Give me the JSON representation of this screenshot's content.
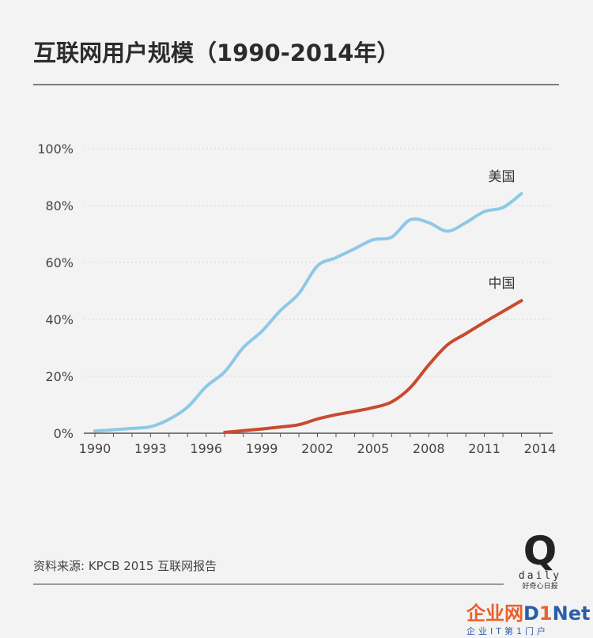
{
  "title": "互联网用户规模（1990-2014年）",
  "source": "资料来源: KPCB 2015 互联网报告",
  "logo": {
    "letter": "Q",
    "word": "daily",
    "tagline": "好奇心日报"
  },
  "watermark": {
    "cn": "企业网",
    "d": "D",
    "i": "1",
    "net": "Net",
    "sub": "企业IT第1门户"
  },
  "colors": {
    "us": "#8ec8e8",
    "china": "#c94a2e",
    "axis": "#555555",
    "grid": "#d5d5d5"
  },
  "chart_data": {
    "type": "line",
    "title": "互联网用户规模（1990-2014年）",
    "xlabel": "",
    "ylabel": "",
    "xlim": [
      1990,
      2014
    ],
    "ylim": [
      0,
      100
    ],
    "x_ticks": [
      "1990",
      "1993",
      "1996",
      "1999",
      "2002",
      "2005",
      "2008",
      "2011",
      "2014"
    ],
    "y_ticks": [
      "0%",
      "20%",
      "40%",
      "60%",
      "80%",
      "100%"
    ],
    "grid": "horizontal dotted",
    "series": [
      {
        "name": "美国",
        "color": "#8ec8e8",
        "x": [
          1990,
          1991,
          1992,
          1993,
          1994,
          1995,
          1996,
          1997,
          1998,
          1999,
          2000,
          2001,
          2002,
          2003,
          2004,
          2005,
          2006,
          2007,
          2008,
          2009,
          2010,
          2011,
          2012,
          2013
        ],
        "y": [
          0.8,
          1.2,
          1.7,
          2.3,
          4.9,
          9.2,
          16.4,
          21.6,
          30.1,
          35.8,
          43.1,
          49.1,
          58.8,
          61.7,
          64.8,
          68.0,
          68.9,
          75.0,
          74.0,
          71.0,
          74.0,
          77.9,
          79.3,
          84.2
        ]
      },
      {
        "name": "中国",
        "color": "#c94a2e",
        "x": [
          1997,
          1998,
          1999,
          2000,
          2001,
          2002,
          2003,
          2004,
          2005,
          2006,
          2007,
          2008,
          2009,
          2010,
          2011,
          2012,
          2013
        ],
        "y": [
          0.3,
          0.9,
          1.5,
          2.2,
          3.0,
          5.0,
          6.5,
          7.7,
          9.0,
          11.0,
          16.0,
          24.0,
          31.0,
          35.0,
          39.0,
          42.8,
          46.6
        ]
      }
    ]
  }
}
